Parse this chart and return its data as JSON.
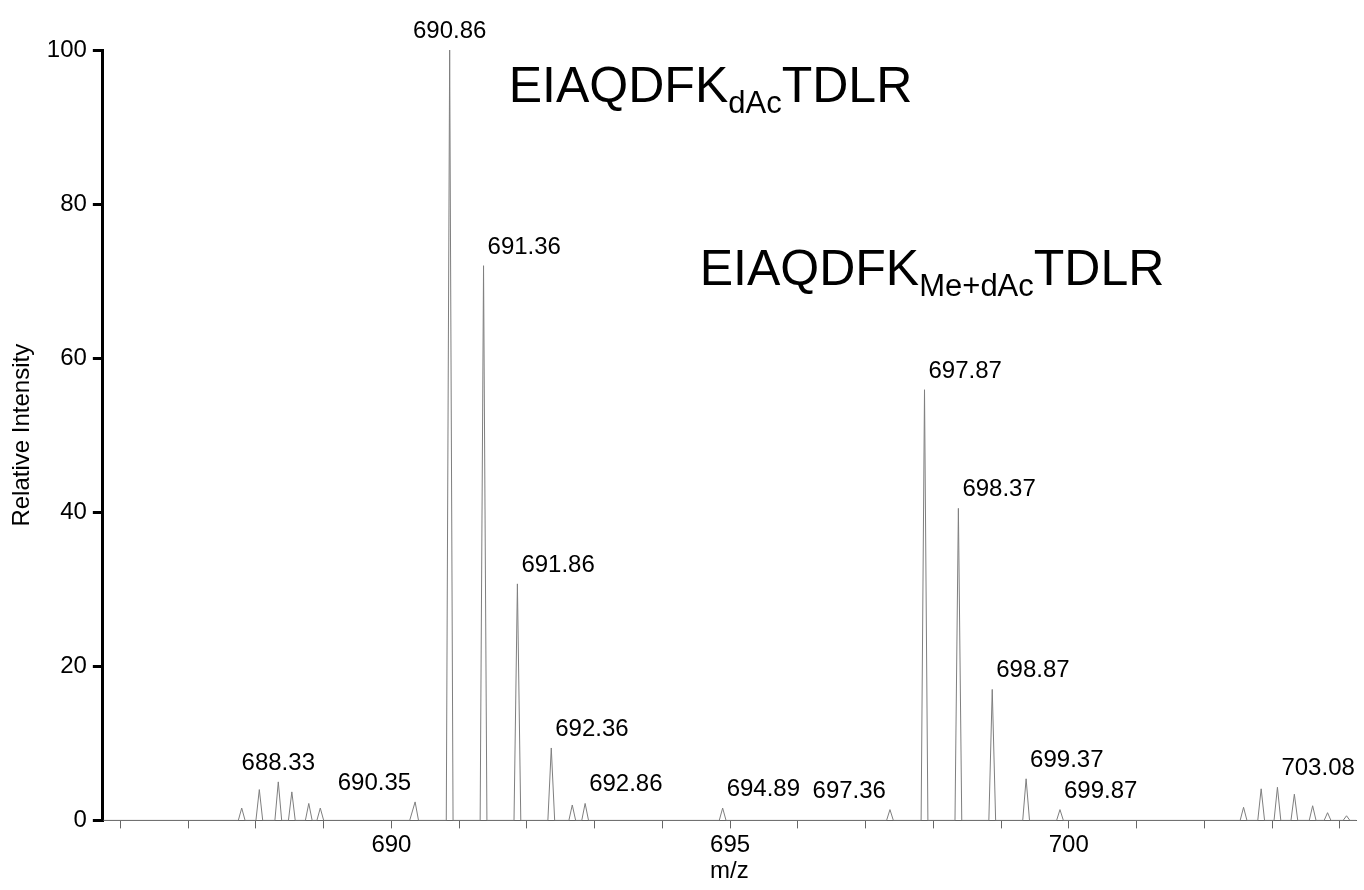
{
  "chart_data": {
    "type": "line",
    "xlabel": "m/z",
    "ylabel": "Relative Intensity",
    "color": "#7f7f7f",
    "marker": "none",
    "x": [
      685.74,
      687.74,
      687.79,
      687.84,
      688.0,
      688.05,
      688.1,
      688.28,
      688.33,
      688.38,
      688.48,
      688.53,
      688.58,
      688.73,
      688.78,
      688.83,
      688.9,
      688.95,
      689.0,
      690.27,
      690.35,
      690.4,
      690.81,
      690.86,
      690.91,
      691.31,
      691.36,
      691.41,
      691.81,
      691.86,
      691.91,
      692.31,
      692.36,
      692.41,
      692.62,
      692.67,
      692.72,
      692.81,
      692.86,
      692.91,
      694.84,
      694.89,
      694.94,
      697.31,
      697.36,
      697.41,
      697.82,
      697.87,
      697.92,
      698.32,
      698.37,
      698.42,
      698.82,
      698.87,
      698.92,
      699.32,
      699.37,
      699.42,
      699.82,
      699.87,
      699.92,
      702.53,
      702.58,
      702.63,
      702.79,
      702.84,
      702.89,
      703.03,
      703.08,
      703.13,
      703.28,
      703.33,
      703.38,
      703.55,
      703.6,
      703.65,
      703.77,
      703.82,
      703.87,
      704.05,
      704.1,
      704.15,
      704.24
    ],
    "values": [
      0,
      0,
      1.6,
      0,
      0,
      4,
      0,
      0,
      5,
      0,
      0,
      3.7,
      0,
      0,
      2.2,
      0,
      0,
      1.6,
      0,
      0,
      2.4,
      0,
      0,
      100,
      0,
      0,
      72,
      0,
      0,
      30.7,
      0,
      0,
      9.4,
      0,
      0,
      2,
      0,
      0,
      2.2,
      0,
      0,
      1.6,
      0,
      0,
      1.4,
      0,
      0,
      55.9,
      0,
      0,
      40.5,
      0,
      0,
      17,
      0,
      0,
      5.4,
      0,
      0,
      1.4,
      0,
      0,
      1.7,
      0,
      0,
      4.1,
      0,
      0,
      4.3,
      0,
      0,
      3.4,
      0,
      0,
      1.9,
      0,
      0,
      1,
      0,
      0,
      0.6,
      0,
      0
    ],
    "xlim": [
      685.74,
      704.24
    ],
    "xticks": [
      {
        "value": 686,
        "label": null
      },
      {
        "value": 687,
        "label": null
      },
      {
        "value": 688,
        "label": null
      },
      {
        "value": 689,
        "label": null
      },
      690,
      {
        "value": 691,
        "label": null
      },
      {
        "value": 692,
        "label": null
      },
      {
        "value": 693,
        "label": null
      },
      {
        "value": 694,
        "label": null
      },
      695,
      {
        "value": 696,
        "label": null
      },
      {
        "value": 697,
        "label": null
      },
      {
        "value": 698,
        "label": null
      },
      {
        "value": 699,
        "label": null
      },
      700,
      {
        "value": 701,
        "label": null
      },
      {
        "value": 702,
        "label": null
      },
      {
        "value": 703,
        "label": null
      },
      {
        "value": 704,
        "label": null
      }
    ],
    "ylim": [
      0,
      100
    ],
    "yticks": [
      0,
      20,
      40,
      60,
      80,
      100
    ],
    "annotations": [
      "EIAQDFK$_{dAc}$TDLR",
      "EIAQDFK$_{Me+dAc}$TDLR",
      {
        "text": "688.33",
        "x": 688.33,
        "y": 5
      },
      {
        "text": "690.35",
        "x": 690.35,
        "y": 2.4
      },
      {
        "text": "690.86",
        "x": 690.86,
        "y": 100
      },
      {
        "text": "691.36",
        "x": 691.36,
        "y": 72
      },
      {
        "text": "691.86",
        "x": 691.86,
        "y": 30.7
      },
      {
        "text": "692.36",
        "x": 692.36,
        "y": 9.4
      },
      {
        "text": "692.86",
        "x": 692.86,
        "y": 2.2
      },
      {
        "text": "694.89",
        "x": 694.89,
        "y": 1.6
      },
      {
        "text": "697.36",
        "x": 697.36,
        "y": 1.4
      },
      {
        "text": "697.87",
        "x": 697.87,
        "y": 55.9
      },
      {
        "text": "698.37",
        "x": 698.37,
        "y": 40.5
      },
      {
        "text": "698.87",
        "x": 698.87,
        "y": 17
      },
      {
        "text": "699.37",
        "x": 699.37,
        "y": 5.4
      },
      {
        "text": "699.87",
        "x": 699.87,
        "y": 1.4
      },
      {
        "text": "703.08",
        "x": 703.08,
        "y": 4.3
      }
    ]
  }
}
